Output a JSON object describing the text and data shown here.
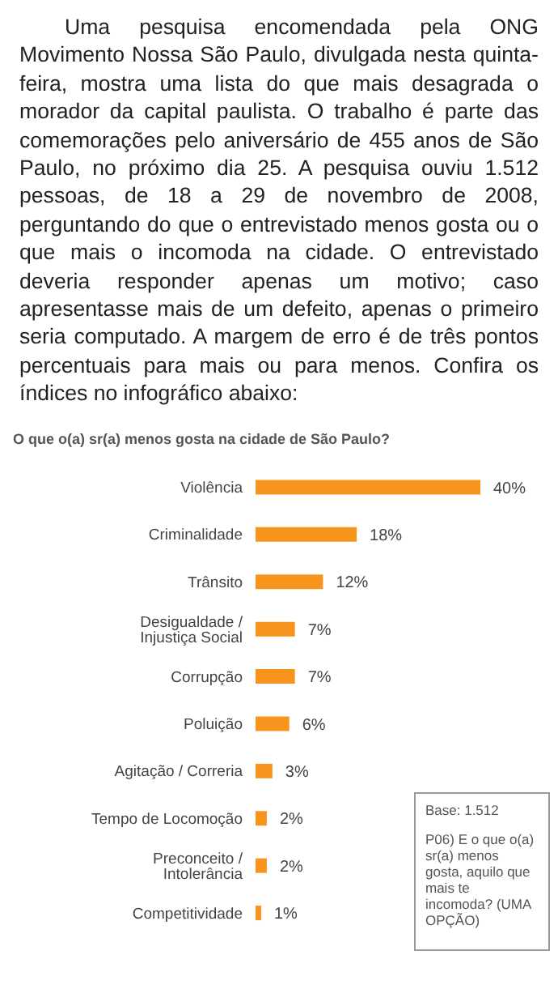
{
  "chart_data": {
    "type": "bar",
    "orientation": "horizontal",
    "title": "O que o(a) sr(a) menos gosta na cidade de São Paulo?",
    "categories": [
      "Violência",
      "Criminalidade",
      "Trânsito",
      "Desigualdade /  Injustiça Social",
      "Corrupção",
      "Poluição",
      "Agitação / Correria",
      "Tempo de Locomoção",
      "Preconceito / Intolerância",
      "Competitividade"
    ],
    "values": [
      40,
      18,
      12,
      7,
      7,
      6,
      3,
      2,
      2,
      1
    ],
    "value_labels": [
      "40%",
      "18%",
      "12%",
      "7%",
      "7%",
      "6%",
      "3%",
      "2%",
      "2%",
      "1%"
    ],
    "color": "#f7941d",
    "annotations": [
      "Uma pesquisa encomendada pela ONG Movimento Nossa São Paulo, divulgada nesta quinta-feira, mostra uma lista do que mais desagrada o morador da capital paulista. O trabalho é parte das comemorações pelo aniversário de 455 anos de São Paulo, no próximo dia 25. A pesquisa ouviu 1.512 pessoas, de 18 a 29 de novembro de 2008, perguntando do que o entrevistado menos gosta ou o que mais o incomoda na cidade. O entrevistado deveria responder apenas um motivo; caso apresentasse mais de um defeito, apenas o primeiro seria computado. A margem de erro é de três pontos percentuais para mais ou para menos. Confira os índices no infográfico abaixo:",
      "Base: 1.512",
      "P06) E o que o(a) sr(a) menos gosta, aquilo que mais te incomoda? (UMA OPÇÃO)"
    ]
  }
}
